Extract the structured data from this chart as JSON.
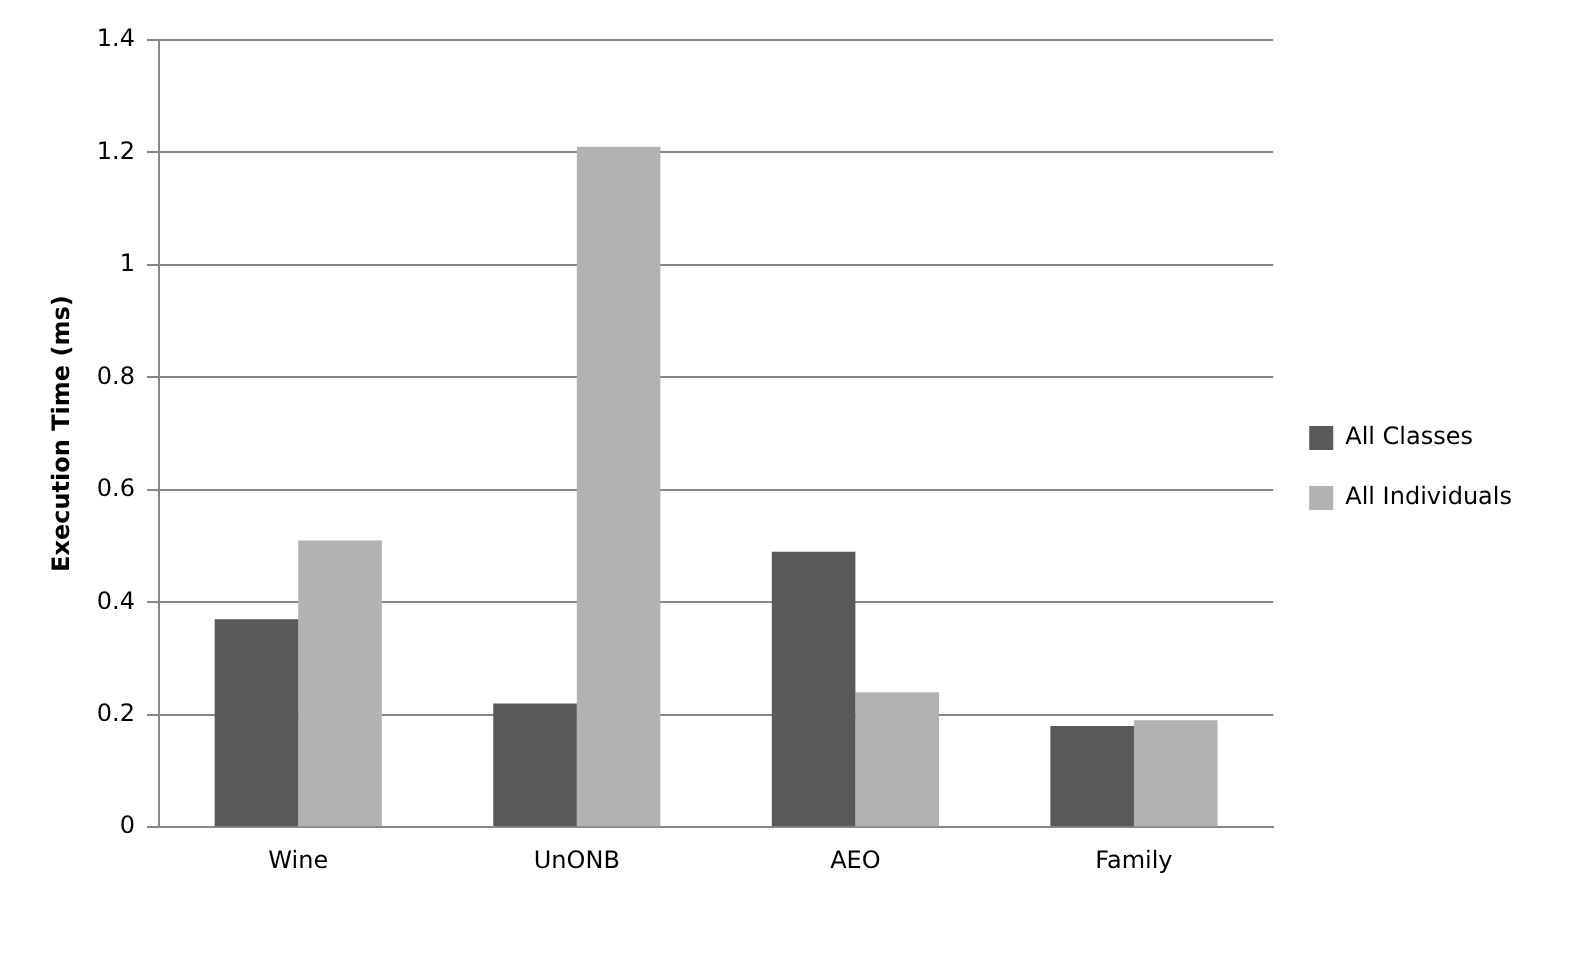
{
  "chart_data": {
    "type": "bar",
    "categories": [
      "Wine",
      "UnONB",
      "AEO",
      "Family"
    ],
    "series": [
      {
        "name": "All Classes",
        "color": "#595959",
        "values": [
          0.37,
          0.22,
          0.49,
          0.18
        ]
      },
      {
        "name": "All Individuals",
        "color": "#b2b2b2",
        "values": [
          0.51,
          1.21,
          0.24,
          0.19
        ]
      }
    ],
    "ylabel": "Execution Time (ms)",
    "ylim": [
      0,
      1.4
    ],
    "yticks": [
      0,
      0.2,
      0.4,
      0.6,
      0.8,
      1,
      1.2,
      1.4
    ],
    "grid": "y",
    "legend": "right"
  }
}
